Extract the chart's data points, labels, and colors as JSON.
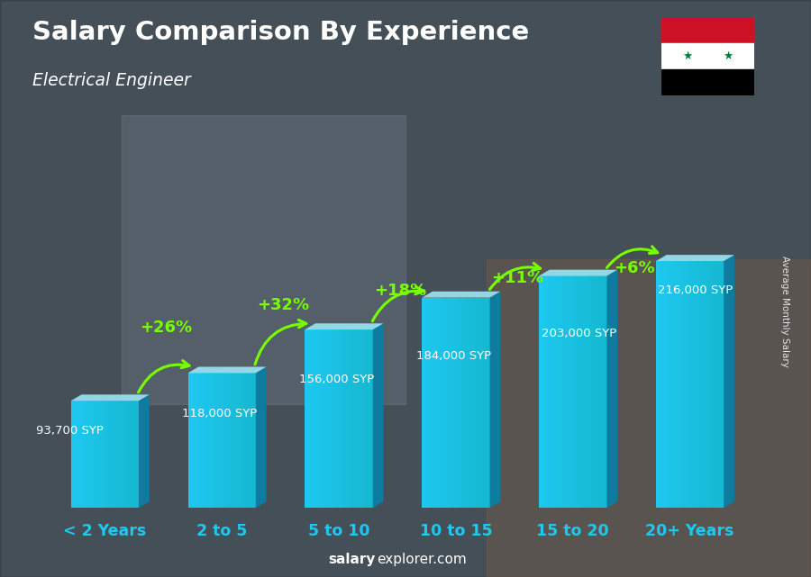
{
  "title": "Salary Comparison By Experience",
  "subtitle": "Electrical Engineer",
  "ylabel": "Average Monthly Salary",
  "categories": [
    "< 2 Years",
    "2 to 5",
    "5 to 10",
    "10 to 15",
    "15 to 20",
    "20+ Years"
  ],
  "values": [
    93700,
    118000,
    156000,
    184000,
    203000,
    216000
  ],
  "value_labels": [
    "93,700 SYP",
    "118,000 SYP",
    "156,000 SYP",
    "184,000 SYP",
    "203,000 SYP",
    "216,000 SYP"
  ],
  "pct_labels": [
    "+26%",
    "+32%",
    "+18%",
    "+11%",
    "+6%"
  ],
  "bar_face_color": "#1ec8f0",
  "bar_side_color": "#0e7ba0",
  "bar_top_color": "#a0eeff",
  "pct_color": "#77ff00",
  "arrow_color": "#77ff00",
  "value_label_color": "#ffffff",
  "xlabel_color": "#1ec8f0",
  "title_color": "#ffffff",
  "subtitle_color": "#ffffff",
  "bg_color": "#5a6a78",
  "footer_bold": "salary",
  "footer_normal": "explorer.com",
  "watermark_text": "Average Monthly Salary",
  "flag_red": "#ce1126",
  "flag_white": "#ffffff",
  "flag_black": "#000000",
  "flag_star": "#007a3d"
}
